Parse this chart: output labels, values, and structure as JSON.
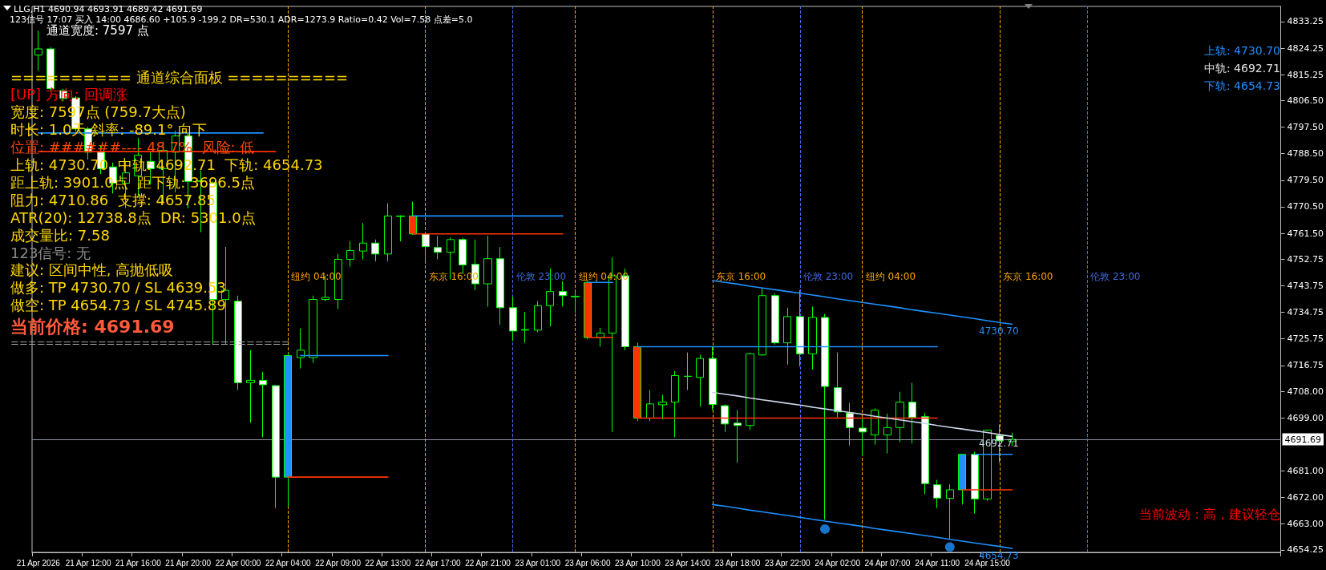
{
  "chart_data": {
    "type": "candlestick",
    "title": "LLG,H1 4690.94 4693.91 4689.42 4691.69",
    "subtitle": "123信号 17:07 买入 14:00 4686.60 +105.9 -199.2 DR=530.1 ADR=1273.9 Ratio=0.42 Vol=7.58 点差=5.0",
    "categories": [
      "21 Apr 2026",
      null,
      null,
      null,
      "21 Apr 12:00",
      null,
      null,
      null,
      "21 Apr 16:00",
      null,
      null,
      null,
      "21 Apr 20:00",
      null,
      null,
      null,
      "22 Apr 00:00",
      null,
      null,
      null,
      "22 Apr 04:00",
      null,
      null,
      null,
      "22 Apr 09:00",
      null,
      null,
      null,
      "22 Apr 13:00",
      null,
      null,
      null,
      "22 Apr 17:00",
      null,
      null,
      null,
      "22 Apr 21:00",
      null,
      null,
      null,
      "23 Apr 01:00",
      null,
      null,
      null,
      "23 Apr 06:00",
      null,
      null,
      null,
      "23 Apr 10:00",
      null,
      null,
      null,
      "23 Apr 14:00",
      null,
      null,
      null,
      "23 Apr 18:00",
      null,
      null,
      null,
      "23 Apr 22:00",
      null,
      null,
      null,
      "24 Apr 02:00",
      null,
      null,
      null,
      "24 Apr 07:00",
      null,
      null,
      null,
      "24 Apr 11:00",
      null,
      null,
      null,
      "24 Apr 15:00",
      null,
      null,
      null,
      null,
      null,
      null,
      null,
      null,
      null,
      null,
      null,
      null,
      null,
      null,
      null,
      null,
      null,
      null,
      null,
      null,
      null,
      null,
      null
    ],
    "ohlc": [
      [
        4821.9,
        4830.2,
        4816.6,
        4824.0
      ],
      [
        4824.0,
        4824.6,
        4809.9,
        4810.5
      ],
      [
        4809.9,
        4810.5,
        4806.2,
        4807.2
      ],
      [
        4807.4,
        4808.0,
        4796.0,
        4796.9
      ],
      [
        4796.9,
        4797.6,
        4786.5,
        4789.0
      ],
      [
        4789.0,
        4791.4,
        4781.6,
        4783.4
      ],
      [
        4784.0,
        4785.5,
        4775.0,
        4778.5
      ],
      [
        4778.5,
        4786.0,
        4770.0,
        4782.0
      ],
      [
        4781.0,
        4793.9,
        4774.0,
        4788.0
      ],
      [
        4785.9,
        4789.0,
        4778.0,
        4783.4
      ],
      [
        4783.4,
        4792.6,
        4771.7,
        4789.6
      ],
      [
        4789.0,
        4796.3,
        4775.4,
        4794.5
      ],
      [
        4794.5,
        4795.7,
        4770.0,
        4779.1
      ],
      [
        4779.1,
        4782.8,
        4761.9,
        4779.3
      ],
      [
        4778.5,
        4779.1,
        4723.7,
        4739.1
      ],
      [
        4739.1,
        4756.9,
        4724.0,
        4742.2
      ],
      [
        4738.5,
        4740.4,
        4708.4,
        4710.9
      ],
      [
        4710.9,
        4721.9,
        4697.3,
        4711.7
      ],
      [
        4711.7,
        4714.5,
        4692.4,
        4710.2
      ],
      [
        4709.9,
        4710.0,
        4668.4,
        4678.9
      ],
      [
        4678.9,
        4721.0,
        4669.0,
        4720.1
      ],
      [
        4719.4,
        4729.3,
        4715.7,
        4721.9
      ],
      [
        4719.4,
        4740.4,
        4717.6,
        4739.1
      ],
      [
        4739.1,
        4747.1,
        4738.5,
        4739.8
      ],
      [
        4739.1,
        4754.5,
        4735.9,
        4752.7
      ],
      [
        4752.7,
        4758.8,
        4750.2,
        4755.7
      ],
      [
        4755.5,
        4765.0,
        4752.7,
        4758.2
      ],
      [
        4758.2,
        4759.4,
        4752.0,
        4754.5
      ],
      [
        4754.5,
        4771.7,
        4752.0,
        4767.4
      ],
      [
        4767.2,
        4767.6,
        4758.8,
        4767.4
      ],
      [
        4767.4,
        4772.3,
        4761.0,
        4761.3
      ],
      [
        4761.3,
        4762.0,
        4752.0,
        4757.0
      ],
      [
        4756.7,
        4760.7,
        4752.7,
        4755.1
      ],
      [
        4755.1,
        4760.1,
        4745.9,
        4759.4
      ],
      [
        4759.4,
        4760.0,
        4747.7,
        4750.8
      ],
      [
        4751.0,
        4759.4,
        4742.2,
        4744.4
      ],
      [
        4744.4,
        4760.7,
        4736.6,
        4752.9
      ],
      [
        4752.9,
        4756.9,
        4730.5,
        4736.3
      ],
      [
        4736.3,
        4740.0,
        4725.0,
        4728.4
      ],
      [
        4728.7,
        4734.8,
        4724.4,
        4728.9
      ],
      [
        4728.7,
        4738.5,
        4728.0,
        4737.0
      ],
      [
        4737.0,
        4749.6,
        4729.9,
        4741.8
      ],
      [
        4741.8,
        4745.3,
        4736.7,
        4740.4
      ],
      [
        4740.0,
        4741.6,
        4734.6,
        4740.2
      ],
      [
        4744.9,
        4745.3,
        4725.6,
        4726.2
      ],
      [
        4726.2,
        4729.5,
        4723.1,
        4727.7
      ],
      [
        4727.7,
        4753.3,
        4694.2,
        4747.1
      ],
      [
        4747.1,
        4749.6,
        4721.9,
        4723.1
      ],
      [
        4723.1,
        4724.4,
        4697.9,
        4698.9
      ],
      [
        4698.9,
        4708.4,
        4697.9,
        4703.7
      ],
      [
        4703.4,
        4706.8,
        4698.5,
        4704.3
      ],
      [
        4704.3,
        4714.9,
        4692.4,
        4713.3
      ],
      [
        4713.0,
        4721.1,
        4708.4,
        4713.1
      ],
      [
        4712.7,
        4720.3,
        4702.8,
        4719.1
      ],
      [
        4719.1,
        4723.1,
        4701.6,
        4703.5
      ],
      [
        4703.1,
        4703.5,
        4694.2,
        4696.9
      ],
      [
        4697.2,
        4701.6,
        4683.8,
        4696.4
      ],
      [
        4696.4,
        4721.1,
        4694.9,
        4720.7
      ],
      [
        4720.3,
        4742.9,
        4720.0,
        4740.4
      ],
      [
        4740.4,
        4741.2,
        4723.8,
        4724.4
      ],
      [
        4724.4,
        4736.3,
        4717.0,
        4733.3
      ],
      [
        4733.3,
        4742.2,
        4716.4,
        4720.7
      ],
      [
        4720.7,
        4736.7,
        4715.4,
        4733.0
      ],
      [
        4733.0,
        4734.2,
        4664.5,
        4709.6
      ],
      [
        4709.2,
        4721.1,
        4699.1,
        4701.0
      ],
      [
        4700.6,
        4704.1,
        4689.6,
        4695.7
      ],
      [
        4695.5,
        4699.1,
        4686.2,
        4694.2
      ],
      [
        4693.2,
        4702.2,
        4689.9,
        4701.6
      ],
      [
        4693.2,
        4700.4,
        4686.9,
        4695.7
      ],
      [
        4695.7,
        4707.8,
        4690.8,
        4704.3
      ],
      [
        4704.3,
        4710.8,
        4690.3,
        4699.1
      ],
      [
        4699.4,
        4700.6,
        4673.1,
        4676.7
      ],
      [
        4676.3,
        4678.0,
        4668.4,
        4671.8
      ],
      [
        4671.7,
        4676.4,
        4657.9,
        4674.6
      ],
      [
        4674.6,
        4686.6,
        4669.6,
        4686.6
      ],
      [
        4686.6,
        4687.5,
        4666.6,
        4671.5
      ],
      [
        4671.5,
        4695.0,
        4670.9,
        4694.8
      ],
      [
        4693.0,
        4696.7,
        4683.8,
        4691.2
      ],
      [
        4690.94,
        4693.91,
        4689.42,
        4691.69
      ],
      null,
      null,
      null,
      null,
      null,
      null,
      null,
      null,
      null,
      null,
      null,
      null,
      null,
      null,
      null,
      null,
      null,
      null,
      null,
      null,
      null
    ],
    "colors": [
      null,
      null,
      null,
      null,
      null,
      null,
      null,
      null,
      null,
      null,
      null,
      null,
      null,
      null,
      null,
      null,
      null,
      null,
      null,
      null,
      "#1e90ff",
      null,
      null,
      null,
      null,
      null,
      null,
      null,
      null,
      null,
      "#ff3300",
      null,
      null,
      null,
      null,
      null,
      null,
      null,
      null,
      null,
      null,
      null,
      null,
      null,
      "#ff3300",
      null,
      null,
      null,
      "#ff3300",
      null,
      null,
      null,
      null,
      null,
      null,
      null,
      null,
      null,
      null,
      null,
      null,
      null,
      null,
      null,
      null,
      null,
      null,
      null,
      null,
      null,
      null,
      null,
      null,
      null,
      "#1e90ff",
      null,
      null,
      null,
      null,
      null,
      null,
      null,
      null,
      null,
      null,
      null,
      null,
      null,
      null,
      null,
      null,
      null,
      null,
      null,
      null,
      null,
      null,
      null,
      null,
      null
    ],
    "series": [
      {
        "type": "line",
        "color": "#1e90ff",
        "values": [
          4795.5,
          4795.5,
          4795.5,
          4795.5,
          4795.5,
          4795.5,
          4795.5,
          4795.5,
          4795.5,
          4795.5,
          4795.5,
          4795.5,
          4795.5,
          4795.5,
          4795.5,
          4795.5,
          4795.5,
          4795.5,
          4795.5,
          null,
          null,
          null,
          null,
          null,
          null,
          null,
          null,
          null,
          null,
          null,
          null,
          null,
          null,
          null,
          null,
          null,
          null,
          null,
          null,
          null,
          null,
          null,
          null,
          null,
          null,
          null,
          null,
          null,
          null,
          null,
          null,
          null,
          null,
          null,
          null,
          null,
          null,
          null,
          null,
          null,
          null,
          null,
          null,
          null,
          null,
          null,
          null,
          null,
          null,
          null,
          null,
          null,
          null,
          null,
          null,
          null,
          null,
          null,
          null,
          null,
          null,
          null,
          null,
          null,
          null,
          null,
          null,
          null,
          null,
          null,
          null,
          null,
          null,
          null,
          null,
          null,
          null,
          null,
          null,
          null
        ]
      },
      {
        "type": "line",
        "color": "#ff3300",
        "values": [
          4789.2,
          4789.2,
          4789.2,
          4789.2,
          4789.2,
          4789.2,
          4789.2,
          4789.2,
          4789.2,
          4789.2,
          4789.2,
          4789.2,
          4789.2,
          4789.2,
          4789.2,
          4789.2,
          4789.2,
          4789.2,
          4789.2,
          4789.2,
          null,
          null,
          null,
          null,
          null,
          null,
          null,
          null,
          null,
          null,
          null,
          null,
          null,
          null,
          null,
          null,
          null,
          null,
          null,
          null,
          null,
          null,
          null,
          null,
          null,
          null,
          null,
          null,
          null,
          null,
          null,
          null,
          null,
          null,
          null,
          null,
          null,
          null,
          null,
          null,
          null,
          null,
          null,
          null,
          null,
          null,
          null,
          null,
          null,
          null,
          null,
          null,
          null,
          null,
          null,
          null,
          null,
          null,
          null,
          null,
          null,
          null,
          null,
          null,
          null,
          null,
          null,
          null,
          null,
          null,
          null,
          null,
          null,
          null,
          null,
          null,
          null,
          null,
          null,
          null
        ]
      },
      {
        "type": "line",
        "color": "#1e90ff",
        "values": [
          null,
          null,
          null,
          null,
          null,
          null,
          null,
          null,
          null,
          null,
          null,
          null,
          null,
          null,
          null,
          null,
          null,
          null,
          null,
          null,
          null,
          4720.1,
          4720.1,
          4720.1,
          4720.1,
          4720.1,
          4720.1,
          4720.1,
          4720.1,
          null,
          null,
          null,
          null,
          null,
          null,
          null,
          null,
          null,
          null,
          null,
          null,
          null,
          null,
          null,
          null,
          null,
          null,
          null,
          null,
          null,
          null,
          null,
          null,
          null,
          null,
          null,
          null,
          null,
          null,
          null,
          null,
          null,
          null,
          null,
          null,
          null,
          null,
          null,
          null,
          null,
          null,
          null,
          null,
          null,
          null,
          null,
          null,
          null,
          null,
          null,
          null,
          null,
          null,
          null,
          null,
          null,
          null,
          null,
          null,
          null,
          null,
          null,
          null,
          null,
          null,
          null,
          null,
          null,
          null,
          null
        ]
      },
      {
        "type": "line",
        "color": "#ff3300",
        "values": [
          null,
          null,
          null,
          null,
          null,
          null,
          null,
          null,
          null,
          null,
          null,
          null,
          null,
          null,
          null,
          null,
          null,
          null,
          null,
          null,
          4678.9,
          4678.9,
          4678.9,
          4678.9,
          4678.9,
          4678.9,
          4678.9,
          4678.9,
          4678.9,
          null,
          null,
          null,
          null,
          null,
          null,
          null,
          null,
          null,
          null,
          null,
          null,
          null,
          null,
          null,
          null,
          null,
          null,
          null,
          null,
          null,
          null,
          null,
          null,
          null,
          null,
          null,
          null,
          null,
          null,
          null,
          null,
          null,
          null,
          null,
          null,
          null,
          null,
          null,
          null,
          null,
          null,
          null,
          null,
          null,
          null,
          null,
          null,
          null,
          null,
          null,
          null,
          null,
          null,
          null,
          null,
          null,
          null,
          null,
          null,
          null,
          null,
          null,
          null,
          null,
          null,
          null,
          null,
          null,
          null,
          null
        ]
      },
      {
        "type": "line",
        "color": "#1e90ff",
        "values": [
          null,
          null,
          null,
          null,
          null,
          null,
          null,
          null,
          null,
          null,
          null,
          null,
          null,
          null,
          null,
          null,
          null,
          null,
          null,
          null,
          null,
          null,
          null,
          null,
          null,
          null,
          null,
          null,
          null,
          null,
          4767.4,
          4767.4,
          4767.4,
          4767.4,
          4767.4,
          4767.4,
          4767.4,
          4767.4,
          4767.4,
          4767.4,
          4767.4,
          4767.4,
          4767.4,
          null,
          null,
          null,
          null,
          null,
          null,
          null,
          null,
          null,
          null,
          null,
          null,
          null,
          null,
          null,
          null,
          null,
          null,
          null,
          null,
          null,
          null,
          null,
          null,
          null,
          null,
          null,
          null,
          null,
          null,
          null,
          null,
          null,
          null,
          null,
          null,
          null,
          null,
          null,
          null,
          null,
          null,
          null,
          null,
          null,
          null,
          null,
          null,
          null,
          null,
          null,
          null,
          null,
          null,
          null,
          null,
          null
        ]
      },
      {
        "type": "line",
        "color": "#ff3300",
        "values": [
          null,
          null,
          null,
          null,
          null,
          null,
          null,
          null,
          null,
          null,
          null,
          null,
          null,
          null,
          null,
          null,
          null,
          null,
          null,
          null,
          null,
          null,
          null,
          null,
          null,
          null,
          null,
          null,
          null,
          null,
          4761.3,
          4761.3,
          4761.3,
          4761.3,
          4761.3,
          4761.3,
          4761.3,
          4761.3,
          4761.3,
          4761.3,
          4761.3,
          4761.3,
          4761.3,
          null,
          null,
          null,
          null,
          null,
          null,
          null,
          null,
          null,
          null,
          null,
          null,
          null,
          null,
          null,
          null,
          null,
          null,
          null,
          null,
          null,
          null,
          null,
          null,
          null,
          null,
          null,
          null,
          null,
          null,
          null,
          null,
          null,
          null,
          null,
          null,
          null,
          null,
          null,
          null,
          null,
          null,
          null,
          null,
          null,
          null,
          null,
          null,
          null,
          null,
          null,
          null,
          null,
          null,
          null,
          null,
          null
        ]
      },
      {
        "type": "line",
        "color": "#1e90ff",
        "values": [
          null,
          null,
          null,
          null,
          null,
          null,
          null,
          null,
          null,
          null,
          null,
          null,
          null,
          null,
          null,
          null,
          null,
          null,
          null,
          null,
          null,
          null,
          null,
          null,
          null,
          null,
          null,
          null,
          null,
          null,
          null,
          null,
          null,
          null,
          null,
          null,
          null,
          null,
          null,
          null,
          null,
          null,
          null,
          null,
          4744.9,
          4744.9,
          4744.9,
          null,
          null,
          null,
          null,
          null,
          null,
          null,
          null,
          null,
          null,
          null,
          null,
          null,
          null,
          null,
          null,
          null,
          null,
          null,
          null,
          null,
          null,
          null,
          null,
          null,
          null,
          null,
          null,
          null,
          null,
          null,
          null,
          null,
          null,
          null,
          null,
          null,
          null,
          null,
          null,
          null,
          null,
          null,
          null,
          null,
          null,
          null,
          null,
          null,
          null,
          null,
          null,
          null
        ]
      },
      {
        "type": "line",
        "color": "#ff3300",
        "values": [
          null,
          null,
          null,
          null,
          null,
          null,
          null,
          null,
          null,
          null,
          null,
          null,
          null,
          null,
          null,
          null,
          null,
          null,
          null,
          null,
          null,
          null,
          null,
          null,
          null,
          null,
          null,
          null,
          null,
          null,
          null,
          null,
          null,
          null,
          null,
          null,
          null,
          null,
          null,
          null,
          null,
          null,
          null,
          null,
          4726.2,
          4726.2,
          4726.2,
          null,
          null,
          null,
          null,
          null,
          null,
          null,
          null,
          null,
          null,
          null,
          null,
          null,
          null,
          null,
          null,
          null,
          null,
          null,
          null,
          null,
          null,
          null,
          null,
          null,
          null,
          null,
          null,
          null,
          null,
          null,
          null,
          null,
          null,
          null,
          null,
          null,
          null,
          null,
          null,
          null,
          null,
          null,
          null,
          null,
          null,
          null,
          null,
          null,
          null,
          null,
          null,
          null
        ]
      },
      {
        "type": "line",
        "color": "#1e90ff",
        "values": [
          null,
          null,
          null,
          null,
          null,
          null,
          null,
          null,
          null,
          null,
          null,
          null,
          null,
          null,
          null,
          null,
          null,
          null,
          null,
          null,
          null,
          null,
          null,
          null,
          null,
          null,
          null,
          null,
          null,
          null,
          null,
          null,
          null,
          null,
          null,
          null,
          null,
          null,
          null,
          null,
          null,
          null,
          null,
          null,
          null,
          null,
          null,
          null,
          4723.1,
          4723.1,
          4723.1,
          4723.1,
          4723.1,
          4723.1,
          4723.1,
          4723.1,
          4723.1,
          4723.1,
          4723.1,
          4723.1,
          4723.1,
          4723.1,
          4723.1,
          4723.1,
          4723.1,
          4723.1,
          4723.1,
          4723.1,
          4723.1,
          4723.1,
          4723.1,
          4723.1,
          4723.1,
          null,
          null,
          null,
          null,
          null,
          null,
          null,
          null,
          null,
          null,
          null,
          null,
          null,
          null,
          null,
          null,
          null,
          null,
          null,
          null,
          null,
          null,
          null,
          null,
          null,
          null,
          null
        ]
      },
      {
        "type": "line",
        "color": "#ff3300",
        "values": [
          null,
          null,
          null,
          null,
          null,
          null,
          null,
          null,
          null,
          null,
          null,
          null,
          null,
          null,
          null,
          null,
          null,
          null,
          null,
          null,
          null,
          null,
          null,
          null,
          null,
          null,
          null,
          null,
          null,
          null,
          null,
          null,
          null,
          null,
          null,
          null,
          null,
          null,
          null,
          null,
          null,
          null,
          null,
          null,
          null,
          null,
          null,
          null,
          4698.9,
          4698.9,
          4698.9,
          4698.9,
          4698.9,
          4698.9,
          4698.9,
          4698.9,
          4698.9,
          4698.9,
          4698.9,
          4698.9,
          4698.9,
          4698.9,
          4698.9,
          4698.9,
          4698.9,
          4698.9,
          4698.9,
          4698.9,
          4698.9,
          4698.9,
          4698.9,
          4698.9,
          4698.9,
          null,
          null,
          null,
          null,
          null,
          null,
          null,
          null,
          null,
          null,
          null,
          null,
          null,
          null,
          null,
          null,
          null,
          null,
          null,
          null,
          null,
          null,
          null,
          null,
          null,
          null,
          null
        ]
      },
      {
        "type": "line",
        "color": "#1e90ff",
        "values": [
          null,
          null,
          null,
          null,
          null,
          null,
          null,
          null,
          null,
          null,
          null,
          null,
          null,
          null,
          null,
          null,
          null,
          null,
          null,
          null,
          null,
          null,
          null,
          null,
          null,
          null,
          null,
          null,
          null,
          null,
          null,
          null,
          null,
          null,
          null,
          null,
          null,
          null,
          null,
          null,
          null,
          null,
          null,
          null,
          null,
          null,
          null,
          null,
          null,
          null,
          null,
          null,
          null,
          null,
          null,
          null,
          null,
          null,
          null,
          null,
          null,
          null,
          null,
          null,
          null,
          null,
          null,
          null,
          null,
          null,
          null,
          null,
          null,
          null,
          null,
          4686.6,
          4686.6,
          4686.6,
          4686.6,
          null,
          null,
          null,
          null,
          null,
          null,
          null,
          null,
          null,
          null,
          null,
          null,
          null,
          null,
          null,
          null,
          null,
          null,
          null,
          null,
          null
        ]
      },
      {
        "type": "line",
        "color": "#ff3300",
        "values": [
          null,
          null,
          null,
          null,
          null,
          null,
          null,
          null,
          null,
          null,
          null,
          null,
          null,
          null,
          null,
          null,
          null,
          null,
          null,
          null,
          null,
          null,
          null,
          null,
          null,
          null,
          null,
          null,
          null,
          null,
          null,
          null,
          null,
          null,
          null,
          null,
          null,
          null,
          null,
          null,
          null,
          null,
          null,
          null,
          null,
          null,
          null,
          null,
          null,
          null,
          null,
          null,
          null,
          null,
          null,
          null,
          null,
          null,
          null,
          null,
          null,
          null,
          null,
          null,
          null,
          null,
          null,
          null,
          null,
          null,
          null,
          null,
          null,
          null,
          4674.6,
          4674.6,
          4674.6,
          4674.6,
          4674.6,
          null,
          null,
          null,
          null,
          null,
          null,
          null,
          null,
          null,
          null,
          null,
          null,
          null,
          null,
          null,
          null,
          null,
          null,
          null,
          null,
          null
        ]
      },
      {
        "type": "line",
        "color": "#1e90ff",
        "values": [
          null,
          null,
          null,
          null,
          null,
          null,
          null,
          null,
          null,
          null,
          null,
          null,
          null,
          null,
          null,
          null,
          null,
          null,
          null,
          null,
          null,
          null,
          null,
          null,
          null,
          null,
          null,
          null,
          null,
          null,
          null,
          null,
          null,
          null,
          null,
          null,
          null,
          null,
          null,
          null,
          null,
          null,
          null,
          null,
          null,
          null,
          null,
          null,
          null,
          null,
          null,
          null,
          null,
          null,
          4745.5,
          4744.9,
          4744.3,
          4743.6,
          4743.0,
          4742.4,
          4741.8,
          4741.2,
          4740.6,
          4740.0,
          4739.3,
          4738.7,
          4738.1,
          4737.5,
          4736.9,
          4736.3,
          4735.6,
          4735.0,
          4734.4,
          4733.8,
          4733.2,
          4732.6,
          4731.9,
          4731.3,
          4730.7,
          null,
          null,
          null,
          null,
          null,
          null,
          null,
          null,
          null,
          null,
          null,
          null,
          null,
          null,
          null,
          null,
          null,
          null,
          null,
          null,
          null
        ]
      },
      {
        "type": "line",
        "color": "#c8d4e8",
        "values": [
          null,
          null,
          null,
          null,
          null,
          null,
          null,
          null,
          null,
          null,
          null,
          null,
          null,
          null,
          null,
          null,
          null,
          null,
          null,
          null,
          null,
          null,
          null,
          null,
          null,
          null,
          null,
          null,
          null,
          null,
          null,
          null,
          null,
          null,
          null,
          null,
          null,
          null,
          null,
          null,
          null,
          null,
          null,
          null,
          null,
          null,
          null,
          null,
          null,
          null,
          null,
          null,
          null,
          null,
          4707.6,
          4707.0,
          4706.4,
          4705.7,
          4705.1,
          4704.5,
          4703.9,
          4703.3,
          4702.6,
          4702.0,
          4701.4,
          4700.8,
          4700.2,
          4699.5,
          4698.9,
          4698.3,
          4697.7,
          4697.1,
          4696.4,
          4695.8,
          4695.2,
          4694.6,
          4694.0,
          4693.3,
          4692.7,
          null,
          null,
          null,
          null,
          null,
          null,
          null,
          null,
          null,
          null,
          null,
          null,
          null,
          null,
          null,
          null,
          null,
          null,
          null,
          null,
          null
        ]
      },
      {
        "type": "line",
        "color": "#1e90ff",
        "values": [
          null,
          null,
          null,
          null,
          null,
          null,
          null,
          null,
          null,
          null,
          null,
          null,
          null,
          null,
          null,
          null,
          null,
          null,
          null,
          null,
          null,
          null,
          null,
          null,
          null,
          null,
          null,
          null,
          null,
          null,
          null,
          null,
          null,
          null,
          null,
          null,
          null,
          null,
          null,
          null,
          null,
          null,
          null,
          null,
          null,
          null,
          null,
          null,
          null,
          null,
          null,
          null,
          null,
          null,
          4669.6,
          4669.0,
          4668.4,
          4667.7,
          4667.1,
          4666.5,
          4665.9,
          4665.3,
          4664.6,
          4664.0,
          4663.4,
          4662.8,
          4662.2,
          4661.5,
          4660.9,
          4660.3,
          4659.7,
          4659.1,
          4658.5,
          4657.8,
          4657.2,
          4656.6,
          4656.0,
          4655.4,
          4654.7,
          null,
          null,
          null,
          null,
          null,
          null,
          null,
          null,
          null,
          null,
          null,
          null,
          null,
          null,
          null,
          null,
          null,
          null,
          null,
          null,
          null
        ]
      },
      {
        "type": "scatter",
        "color": "#1e90ff",
        "marker": "circle",
        "values": [
          null,
          null,
          null,
          null,
          null,
          null,
          null,
          null,
          null,
          null,
          null,
          null,
          null,
          null,
          null,
          null,
          null,
          null,
          null,
          null,
          null,
          null,
          null,
          null,
          null,
          null,
          null,
          null,
          null,
          null,
          null,
          null,
          null,
          null,
          null,
          null,
          null,
          null,
          null,
          null,
          null,
          null,
          null,
          null,
          null,
          null,
          null,
          null,
          null,
          null,
          null,
          null,
          null,
          null,
          null,
          null,
          null,
          null,
          null,
          null,
          null,
          null,
          null,
          4661.3,
          null,
          null,
          null,
          null,
          null,
          null,
          null,
          null,
          null,
          4655.2,
          null,
          null,
          null,
          null,
          null,
          null,
          null,
          null,
          null,
          null,
          null,
          null,
          null,
          null,
          null,
          null,
          null,
          null,
          null,
          null,
          null,
          null,
          null,
          null,
          null,
          null
        ]
      }
    ],
    "ylim": [
      4653.4,
      4838.4
    ],
    "yticks": [
      {
        "value": 4654.25,
        "label": "4654.25"
      },
      {
        "value": 4663,
        "label": "4663.00"
      },
      {
        "value": 4672,
        "label": "4672.00"
      },
      {
        "value": 4681,
        "label": "4681.00"
      },
      {
        "value": 4699,
        "label": "4699.00"
      },
      {
        "value": 4708,
        "label": "4708.00"
      },
      {
        "value": 4716.75,
        "label": "4716.75"
      },
      {
        "value": 4725.75,
        "label": "4725.75"
      },
      {
        "value": 4734.75,
        "label": "4734.75"
      },
      {
        "value": 4743.75,
        "label": "4743.75"
      },
      {
        "value": 4752.75,
        "label": "4752.75"
      },
      {
        "value": 4761.5,
        "label": "4761.50"
      },
      {
        "value": 4770.5,
        "label": "4770.50"
      },
      {
        "value": 4779.5,
        "label": "4779.50"
      },
      {
        "value": 4788.5,
        "label": "4788.50"
      },
      {
        "value": 4797.5,
        "label": "4797.50"
      },
      {
        "value": 4806.5,
        "label": "4806.50"
      },
      {
        "value": 4815.25,
        "label": "4815.25"
      },
      {
        "value": 4824.25,
        "label": "4824.25"
      },
      {
        "value": 4833.25,
        "label": "4833.25"
      }
    ],
    "ref_lines": [
      {
        "axis": "y",
        "value": 4691.69,
        "label": "4691.69",
        "color": "#8c94a4",
        "line_style": "solid"
      }
    ],
    "annotations": [
      "通道宽度: 7597 点",
      "========== 通道综合面板 ==========",
      "[UP] 方向: 回调涨",
      "宽度: 7597点 (759.7大点)",
      "时长: 1.0天 斜率: -89.1° 向下",
      "位置: ######---- 48.7%  风险: 低",
      "上轨: 4730.70  中轨: 4692.71  下轨: 4654.73",
      "距上轨: 3901.0点  距下轨: 3696.5点",
      "阻力: 4710.86  支撑: 4657.85",
      "ATR(20): 12738.8点  DR: 5301.0点",
      "成交量比: 7.58",
      "123信号: 无",
      "建议: 区间中性, 高抛低吸",
      "做多: TP 4730.70 / SL 4639.53",
      "做空: TP 4654.73 / SL 4745.89",
      "当前价格: 4691.69",
      "================================",
      "上轨: 4730.70",
      "中轨: 4692.71",
      "下轨: 4654.73",
      "当前波动：高，建议轻仓",
      "纽约 04:00",
      "东京 16:00",
      "伦敦 23:00",
      "纽约 04:00",
      "东京 16:00",
      "伦敦 23:00",
      "纽约 04:00",
      "东京 16:00",
      "伦敦 23:00",
      {
        "text": "4730.70",
        "y": 4730.7
      },
      {
        "text": "4692.71",
        "y": 4692.71
      },
      {
        "text": "4654.73",
        "y": 4654.73
      }
    ],
    "grid": false,
    "marker": "none",
    "line_style": "solid"
  }
}
